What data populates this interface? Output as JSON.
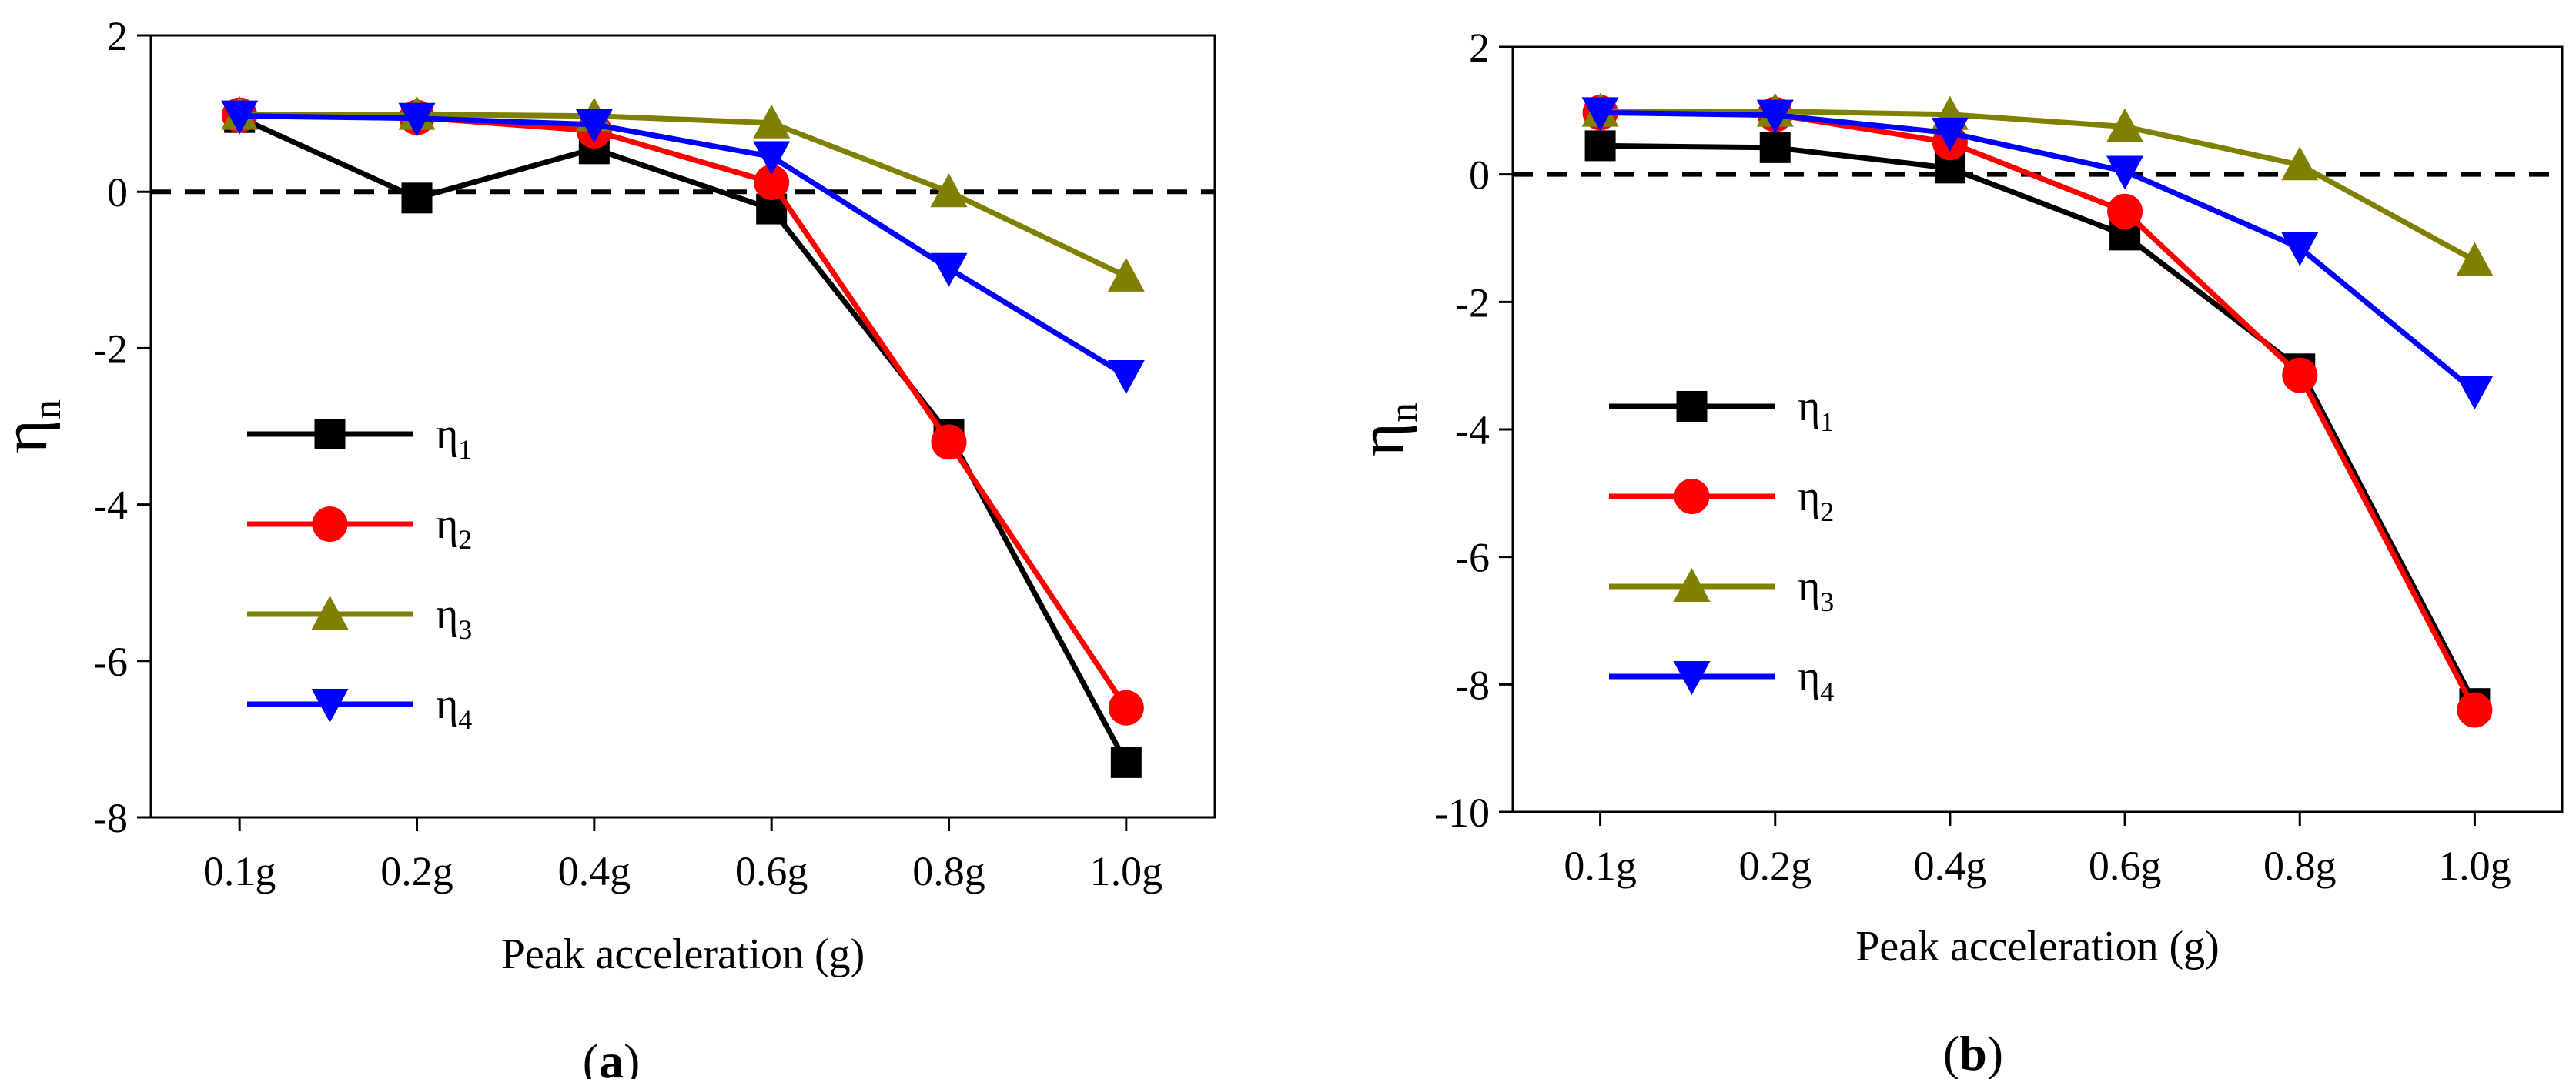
{
  "chart_data": [
    {
      "panel_label": "a",
      "type": "line",
      "categories": [
        "0.1g",
        "0.2g",
        "0.4g",
        "0.6g",
        "0.8g",
        "1.0g"
      ],
      "xlabel": "Peak acceleration (g)",
      "ylabel_base": "η",
      "ylabel_sub": "n",
      "ylim": [
        -8,
        2
      ],
      "yticks": [
        2,
        0,
        -2,
        -4,
        -6,
        -8
      ],
      "ytick_labels": [
        "2",
        "0",
        "-2",
        "-4",
        "-6",
        "-8"
      ],
      "reference_line": 0,
      "grid": false,
      "legend_position": "left",
      "series": [
        {
          "name_base": "η",
          "name_sub": "1",
          "color": "#000000",
          "marker": "square",
          "values": [
            0.95,
            -0.08,
            0.55,
            -0.22,
            -3.1,
            -7.3
          ]
        },
        {
          "name_base": "η",
          "name_sub": "2",
          "color": "#ff0000",
          "marker": "circle",
          "values": [
            0.98,
            0.95,
            0.78,
            0.12,
            -3.2,
            -6.6
          ]
        },
        {
          "name_base": "η",
          "name_sub": "3",
          "color": "#808000",
          "marker": "triangle-up",
          "values": [
            0.99,
            0.99,
            0.97,
            0.88,
            0.0,
            -1.08
          ]
        },
        {
          "name_base": "η",
          "name_sub": "4",
          "color": "#0000ff",
          "marker": "triangle-down",
          "values": [
            0.97,
            0.94,
            0.86,
            0.45,
            -0.98,
            -2.35
          ]
        }
      ]
    },
    {
      "panel_label": "b",
      "type": "line",
      "categories": [
        "0.1g",
        "0.2g",
        "0.4g",
        "0.6g",
        "0.8g",
        "1.0g"
      ],
      "xlabel": "Peak acceleration (g)",
      "ylabel_base": "η",
      "ylabel_sub": "n",
      "ylim": [
        -10,
        2
      ],
      "yticks": [
        2,
        0,
        -2,
        -4,
        -6,
        -8,
        -10
      ],
      "ytick_labels": [
        "2",
        "0",
        "-2",
        "-4",
        "-6",
        "-8",
        "-10"
      ],
      "reference_line": 0,
      "grid": false,
      "legend_position": "left",
      "series": [
        {
          "name_base": "η",
          "name_sub": "1",
          "color": "#000000",
          "marker": "square",
          "values": [
            0.45,
            0.42,
            0.1,
            -0.95,
            -3.05,
            -8.3
          ]
        },
        {
          "name_base": "η",
          "name_sub": "2",
          "color": "#ff0000",
          "marker": "circle",
          "values": [
            0.97,
            0.94,
            0.5,
            -0.58,
            -3.15,
            -8.4
          ]
        },
        {
          "name_base": "η",
          "name_sub": "3",
          "color": "#808000",
          "marker": "triangle-up",
          "values": [
            0.99,
            0.99,
            0.94,
            0.75,
            0.15,
            -1.35
          ]
        },
        {
          "name_base": "η",
          "name_sub": "4",
          "color": "#0000ff",
          "marker": "triangle-down",
          "values": [
            0.97,
            0.93,
            0.65,
            0.05,
            -1.15,
            -3.4
          ]
        }
      ]
    }
  ]
}
